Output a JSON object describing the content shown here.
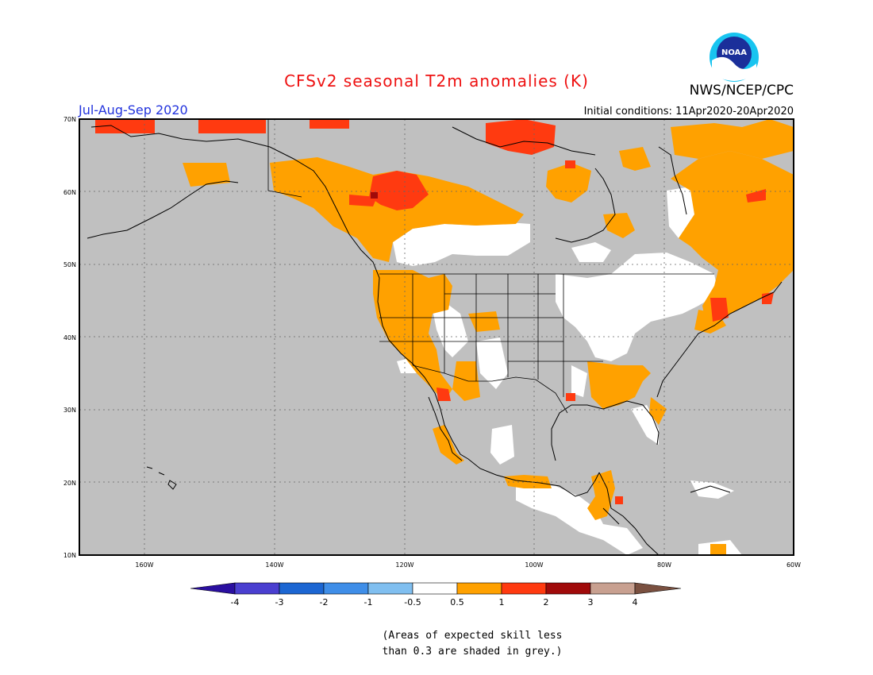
{
  "header": {
    "title": "CFSv2 seasonal T2m anomalies (K)",
    "agency": "NWS/NCEP/CPC",
    "period": "Jul-Aug-Sep 2020",
    "initial_conditions": "Initial conditions: 11Apr2020-20Apr2020",
    "logo_text": "NOAA"
  },
  "map": {
    "lon_range": [
      -172,
      -60
    ],
    "lat_range": [
      10,
      70
    ],
    "lon_ticks": [
      "160W",
      "140W",
      "120W",
      "100W",
      "80W",
      "60W"
    ],
    "lat_ticks": [
      "10N",
      "20N",
      "30N",
      "40N",
      "50N",
      "60N",
      "70N"
    ],
    "background_color": "#c0c0c0",
    "grid": "dotted"
  },
  "colorbar": {
    "labels": [
      "-4",
      "-3",
      "-2",
      "-1",
      "-0.5",
      "0.5",
      "1",
      "2",
      "3",
      "4"
    ],
    "colors": [
      "#2a0fa0",
      "#4a3fd0",
      "#1c66d2",
      "#3f8ee8",
      "#80bff0",
      "#ffffff",
      "#ffa100",
      "#ff3a10",
      "#a00a0a",
      "#c8a090",
      "#7a5040"
    ]
  },
  "note": {
    "line1": "(Areas of expected skill less",
    "line2": "than 0.3 are shaded in grey.)"
  }
}
